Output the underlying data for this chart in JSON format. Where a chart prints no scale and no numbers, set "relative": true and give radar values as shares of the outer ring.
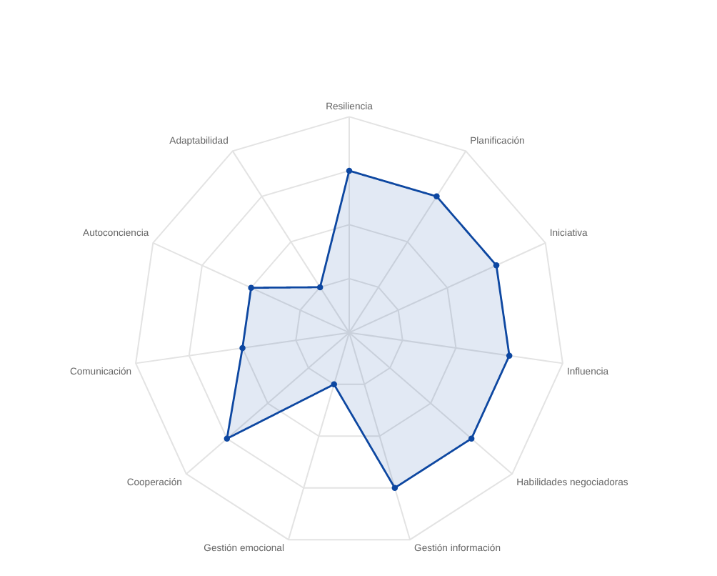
{
  "chart_data": {
    "type": "radar",
    "relative": true,
    "categories": [
      "Resiliencia",
      "Planificación",
      "Iniciativa",
      "Influencia",
      "Habilidades negociadoras",
      "Gestión información",
      "Gestión emocional",
      "Cooperación",
      "Comunicación",
      "Autoconciencia",
      "Adaptabilidad"
    ],
    "series": [
      {
        "color": "#0d47a1",
        "values": [
          0.75,
          0.75,
          0.75,
          0.75,
          0.75,
          0.75,
          0.25,
          0.75,
          0.5,
          0.5,
          0.25
        ]
      }
    ],
    "grid": true,
    "marker": "circle",
    "line_style": "solid"
  }
}
